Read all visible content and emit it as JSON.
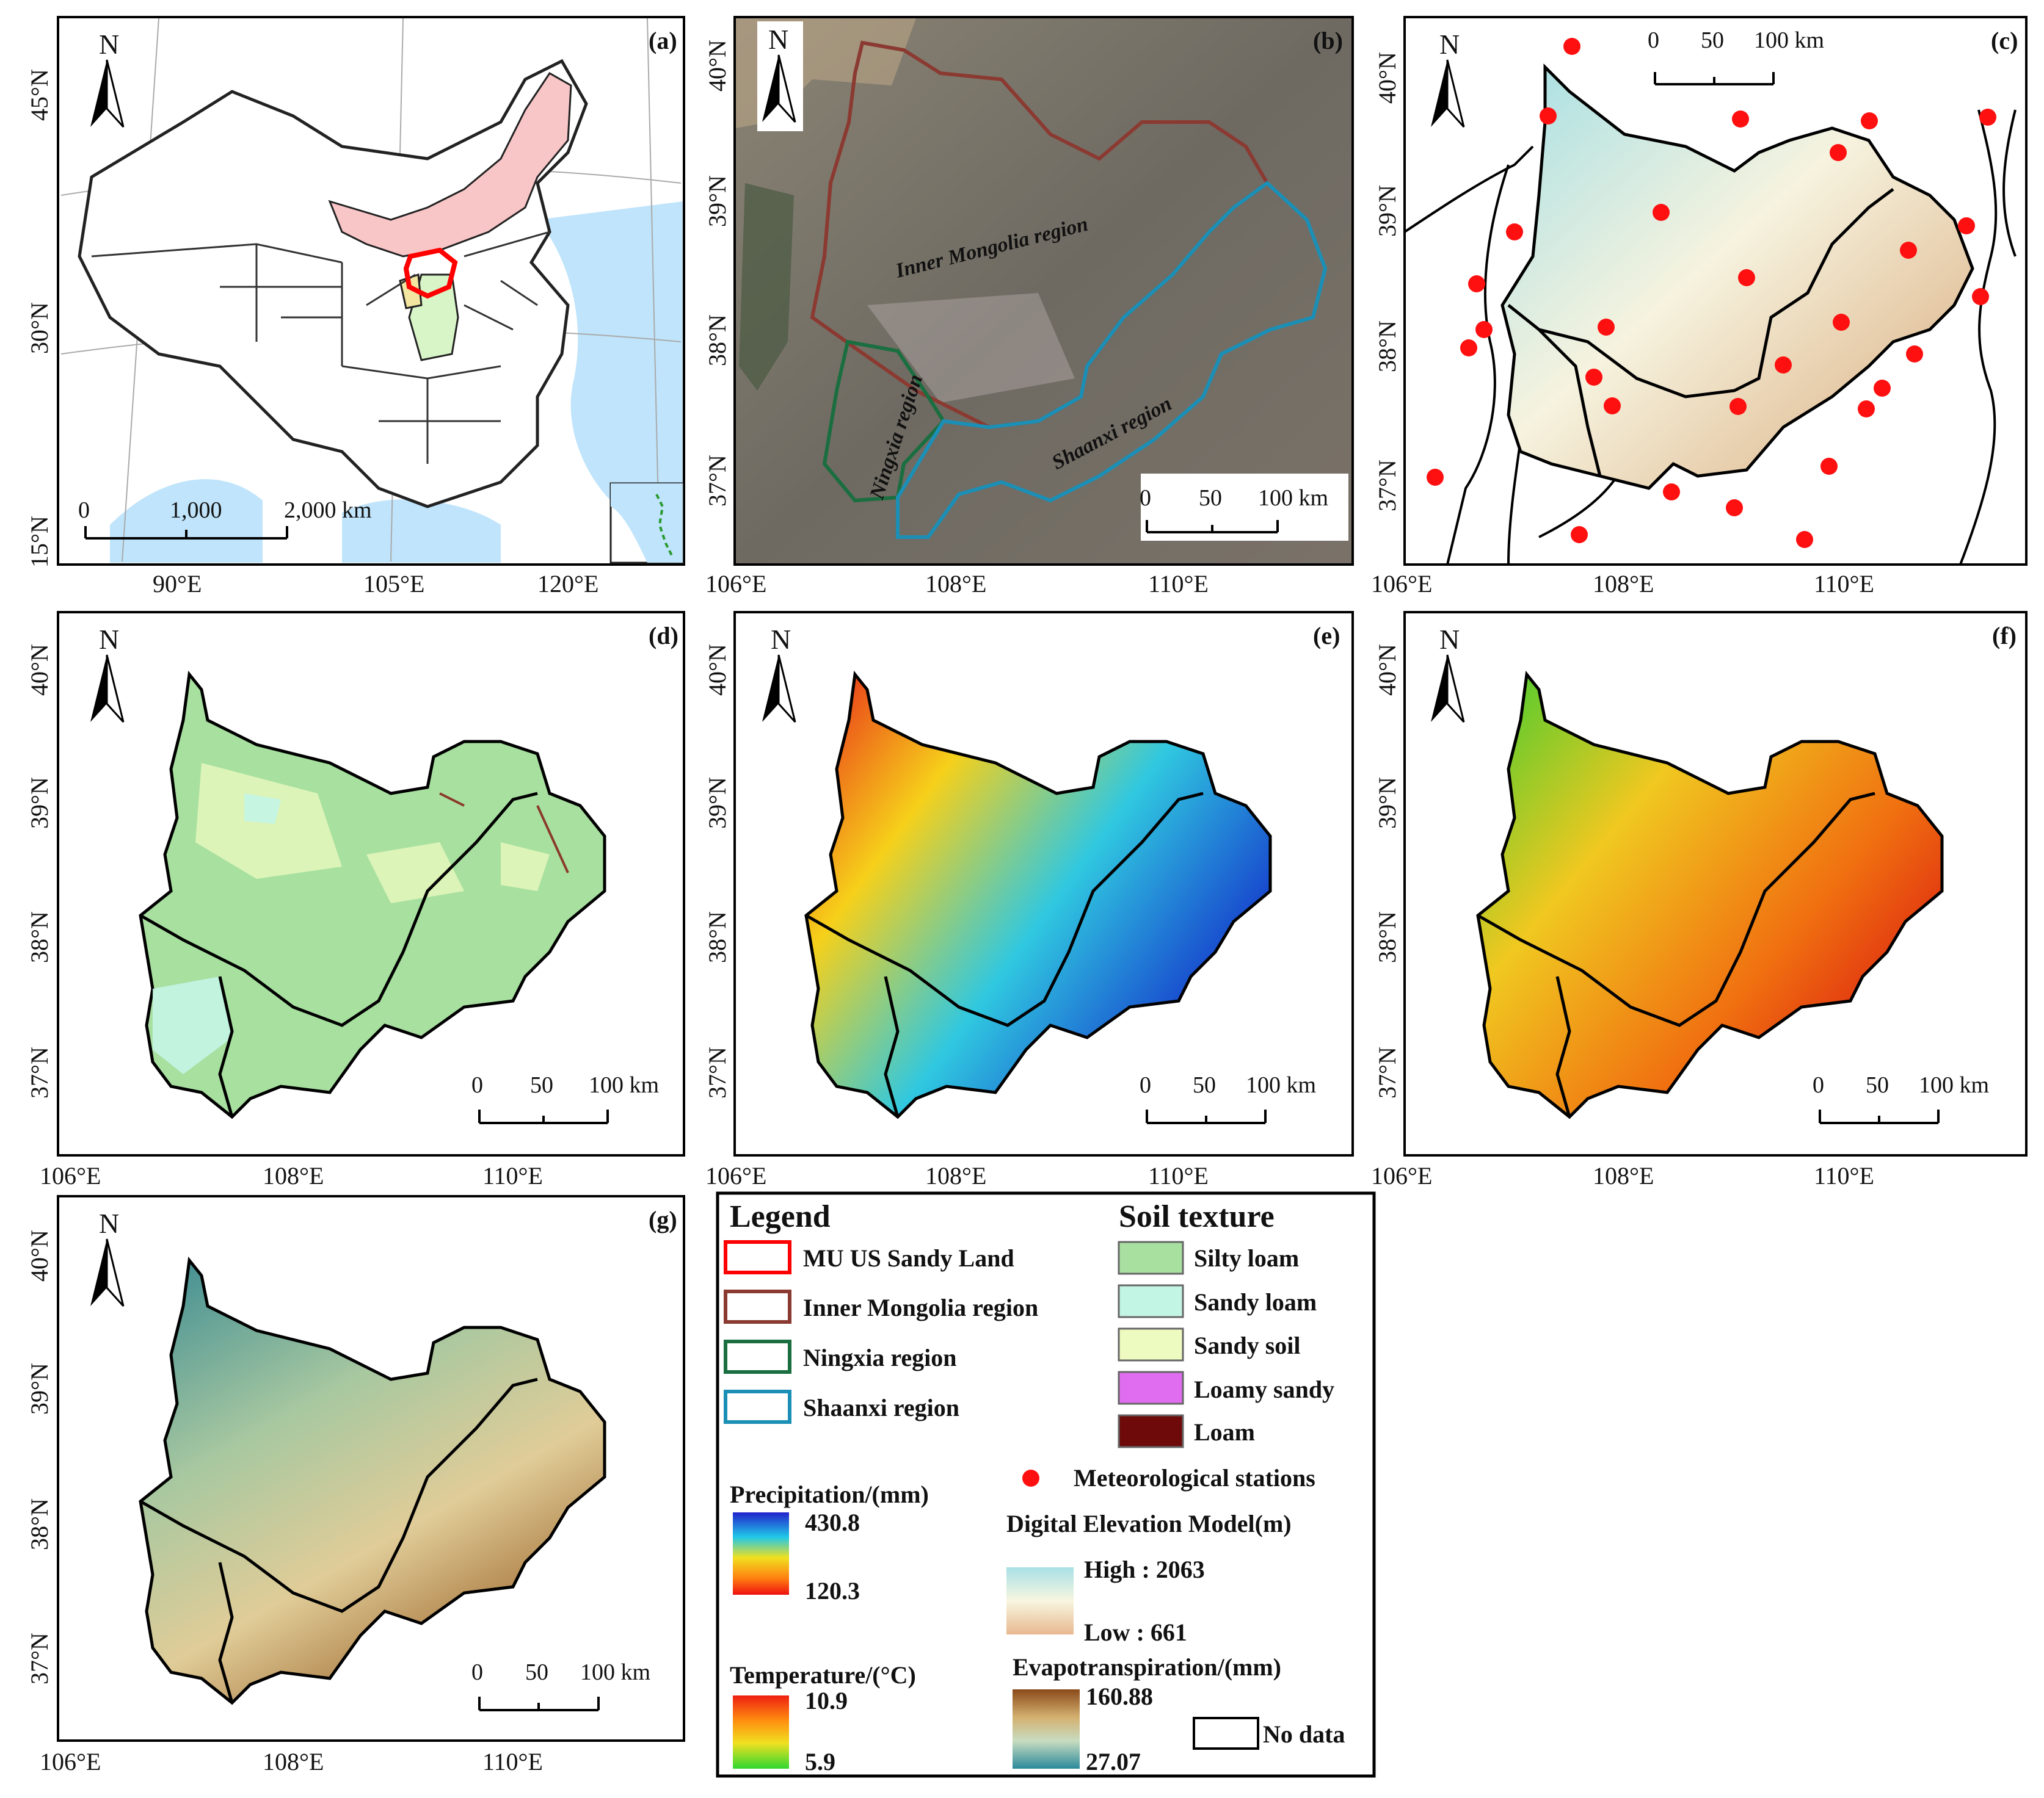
{
  "panels": {
    "a": {
      "label": "(a)",
      "north": "N",
      "lat_ticks": [
        "45°N",
        "30°N",
        "15°N"
      ],
      "lon_ticks": [
        "90°E",
        "105°E",
        "120°E"
      ],
      "scale": [
        "0",
        "1,000",
        "2,000 km"
      ]
    },
    "b": {
      "label": "(b)",
      "north": "N",
      "lat_ticks": [
        "40°N",
        "39°N",
        "38°N",
        "37°N"
      ],
      "lon_ticks": [
        "106°E",
        "108°E",
        "110°E"
      ],
      "scale": [
        "0",
        "50",
        "100 km"
      ],
      "regions": [
        "Inner Mongolia region",
        "Ningxia region",
        "Shaanxi region"
      ]
    },
    "c": {
      "label": "(c)",
      "north": "N",
      "lat_ticks": [
        "40°N",
        "39°N",
        "38°N",
        "37°N"
      ],
      "lon_ticks": [
        "106°E",
        "108°E",
        "110°E"
      ],
      "scale": [
        "0",
        "50",
        "100 km"
      ]
    },
    "d": {
      "label": "(d)",
      "north": "N",
      "lat_ticks": [
        "40°N",
        "39°N",
        "38°N",
        "37°N"
      ],
      "lon_ticks": [
        "106°E",
        "108°E",
        "110°E"
      ],
      "scale": [
        "0",
        "50",
        "100 km"
      ]
    },
    "e": {
      "label": "(e)",
      "north": "N",
      "lat_ticks": [
        "40°N",
        "39°N",
        "38°N",
        "37°N"
      ],
      "lon_ticks": [
        "106°E",
        "108°E",
        "110°E"
      ],
      "scale": [
        "0",
        "50",
        "100 km"
      ]
    },
    "f": {
      "label": "(f)",
      "north": "N",
      "lat_ticks": [
        "40°N",
        "39°N",
        "38°N",
        "37°N"
      ],
      "lon_ticks": [
        "106°E",
        "108°E",
        "110°E"
      ],
      "scale": [
        "0",
        "50",
        "100 km"
      ]
    },
    "g": {
      "label": "(g)",
      "north": "N",
      "lat_ticks": [
        "40°N",
        "39°N",
        "38°N",
        "37°N"
      ],
      "lon_ticks": [
        "106°E",
        "108°E",
        "110°E"
      ],
      "scale": [
        "0",
        "50",
        "100 km"
      ]
    }
  },
  "legend": {
    "title": "Legend",
    "boundaries": [
      {
        "label": "MU US Sandy Land",
        "color": "#ff0000"
      },
      {
        "label": "Inner Mongolia region",
        "color": "#8b3a32"
      },
      {
        "label": "Ningxia region",
        "color": "#1a6e3f"
      },
      {
        "label": "Shaanxi region",
        "color": "#1b8fb5"
      }
    ],
    "soil_title": "Soil texture",
    "soil": [
      {
        "label": "Silty loam",
        "color": "#a8e0a0"
      },
      {
        "label": "Sandy loam",
        "color": "#c3f5e5"
      },
      {
        "label": "Sandy soil",
        "color": "#eefbc0"
      },
      {
        "label": "Loamy sandy",
        "color": "#e06cf0"
      },
      {
        "label": "Loam",
        "color": "#6e0a0a"
      }
    ],
    "stations_label": "Meteorological stations",
    "precip": {
      "title": "Precipitation/(mm)",
      "high": "430.8",
      "low": "120.3"
    },
    "temp": {
      "title": "Temperature/(°C)",
      "high": "10.9",
      "low": "5.9"
    },
    "dem": {
      "title": "Digital Elevation Model(m)",
      "high": "High : 2063",
      "low": "Low : 661"
    },
    "et": {
      "title": "Evapotranspiration/(mm)",
      "high": "160.88",
      "low": "27.07"
    },
    "nodata": "No data"
  }
}
